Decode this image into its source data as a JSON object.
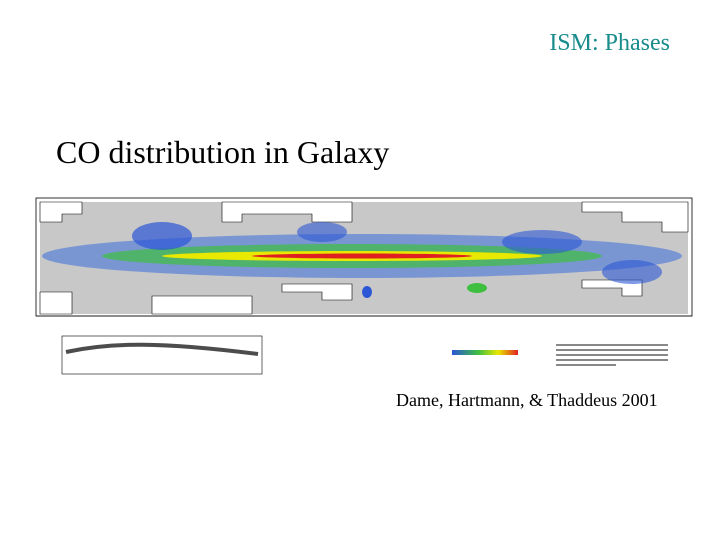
{
  "slide": {
    "header": "ISM: Phases",
    "title": "CO distribution in Galaxy",
    "credit": "Dame, Hartmann, & Thaddeus 2001"
  },
  "figure": {
    "description_icon": "galactic-co-map-image",
    "colors": {
      "background": "#c8c8c8",
      "low": "#2b56d6",
      "mid": "#3fbf3f",
      "high": "#e8e800",
      "peak": "#e02020"
    }
  }
}
